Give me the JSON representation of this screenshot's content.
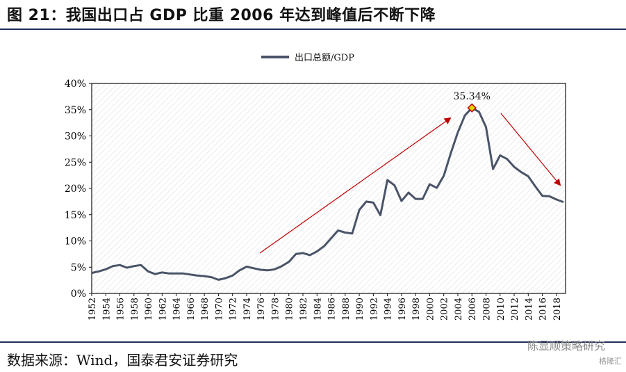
{
  "title": "图 21：我国出口占 GDP 比重 2006 年达到峰值后不断下降",
  "source": "数据来源：Wind，国泰君安证券研究",
  "watermark": "陈显顺策略研究",
  "watermark_small": "格隆汇",
  "colors": {
    "line": "#4a5468",
    "arrow": "#c00000",
    "rule": "#1f2e5a"
  },
  "chart_data": {
    "type": "line",
    "title": "",
    "xlabel": "",
    "ylabel": "",
    "legend_position": "top-center",
    "ylim": [
      0,
      40
    ],
    "yticks": [
      "0%",
      "5%",
      "10%",
      "15%",
      "20%",
      "25%",
      "30%",
      "35%",
      "40%"
    ],
    "xticks": [
      "1952",
      "1954",
      "1956",
      "1958",
      "1960",
      "1962",
      "1964",
      "1966",
      "1968",
      "1970",
      "1972",
      "1974",
      "1976",
      "1978",
      "1980",
      "1982",
      "1984",
      "1986",
      "1988",
      "1990",
      "1992",
      "1994",
      "1996",
      "1998",
      "2000",
      "2002",
      "2004",
      "2006",
      "2008",
      "2010",
      "2012",
      "2014",
      "2016",
      "2018"
    ],
    "annotation": "35.34%",
    "series": [
      {
        "name": "出口总额/GDP",
        "x": [
          1952,
          1953,
          1954,
          1955,
          1956,
          1957,
          1958,
          1959,
          1960,
          1961,
          1962,
          1963,
          1964,
          1965,
          1966,
          1967,
          1968,
          1969,
          1970,
          1971,
          1972,
          1973,
          1974,
          1975,
          1976,
          1977,
          1978,
          1979,
          1980,
          1981,
          1982,
          1983,
          1984,
          1985,
          1986,
          1987,
          1988,
          1989,
          1990,
          1991,
          1992,
          1993,
          1994,
          1995,
          1996,
          1997,
          1998,
          1999,
          2000,
          2001,
          2002,
          2003,
          2004,
          2005,
          2006,
          2007,
          2008,
          2009,
          2010,
          2011,
          2012,
          2013,
          2014,
          2015,
          2016,
          2017,
          2018,
          2019
        ],
        "values": [
          3.9,
          4.2,
          4.6,
          5.2,
          5.4,
          4.9,
          5.2,
          5.4,
          4.2,
          3.7,
          4.0,
          3.8,
          3.8,
          3.8,
          3.6,
          3.4,
          3.3,
          3.1,
          2.6,
          2.9,
          3.4,
          4.4,
          5.1,
          4.8,
          4.5,
          4.4,
          4.6,
          5.2,
          6.0,
          7.5,
          7.7,
          7.3,
          8.0,
          9.0,
          10.5,
          12.0,
          11.6,
          11.4,
          15.9,
          17.5,
          17.3,
          14.9,
          21.6,
          20.6,
          17.6,
          19.2,
          18.0,
          18.0,
          20.8,
          20.1,
          22.4,
          26.7,
          30.7,
          33.9,
          35.34,
          34.6,
          31.7,
          23.7,
          26.3,
          25.6,
          24.1,
          23.1,
          22.3,
          20.4,
          18.6,
          18.5,
          17.9,
          17.4
        ]
      }
    ]
  }
}
